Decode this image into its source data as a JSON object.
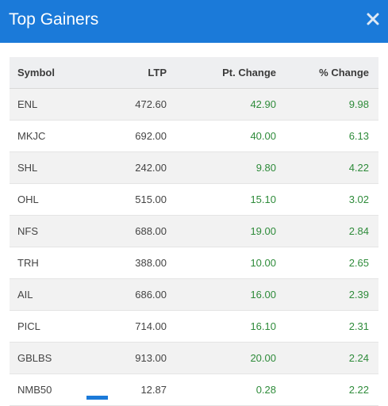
{
  "header": {
    "title": "Top Gainers"
  },
  "table": {
    "columns": {
      "symbol": "Symbol",
      "ltp": "LTP",
      "pt_change": "Pt. Change",
      "pct_change": "% Change"
    },
    "rows": [
      {
        "symbol": "ENL",
        "ltp": "472.60",
        "pt_change": "42.90",
        "pct_change": "9.98"
      },
      {
        "symbol": "MKJC",
        "ltp": "692.00",
        "pt_change": "40.00",
        "pct_change": "6.13"
      },
      {
        "symbol": "SHL",
        "ltp": "242.00",
        "pt_change": "9.80",
        "pct_change": "4.22"
      },
      {
        "symbol": "OHL",
        "ltp": "515.00",
        "pt_change": "15.10",
        "pct_change": "3.02"
      },
      {
        "symbol": "NFS",
        "ltp": "688.00",
        "pt_change": "19.00",
        "pct_change": "2.84"
      },
      {
        "symbol": "TRH",
        "ltp": "388.00",
        "pt_change": "10.00",
        "pct_change": "2.65"
      },
      {
        "symbol": "AIL",
        "ltp": "686.00",
        "pt_change": "16.00",
        "pct_change": "2.39"
      },
      {
        "symbol": "PICL",
        "ltp": "714.00",
        "pt_change": "16.10",
        "pct_change": "2.31"
      },
      {
        "symbol": "GBLBS",
        "ltp": "913.00",
        "pt_change": "20.00",
        "pct_change": "2.24"
      },
      {
        "symbol": "NMB50",
        "ltp": "12.87",
        "pt_change": "0.28",
        "pct_change": "2.22"
      }
    ]
  },
  "colors": {
    "header_bg": "#1b7ad9",
    "positive": "#2e8b3a"
  },
  "icons": {
    "close": "close-icon"
  }
}
